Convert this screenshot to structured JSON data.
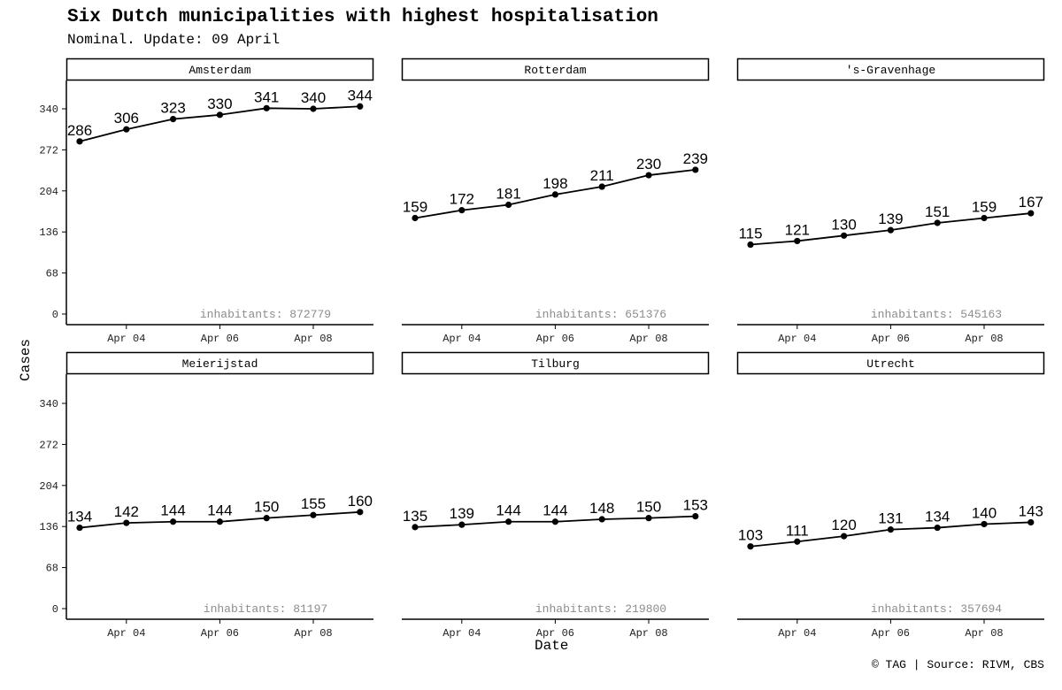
{
  "chart_data": {
    "type": "line",
    "title": "Six Dutch municipalities with highest hospitalisation",
    "subtitle": "Nominal. Update: 09 April",
    "xlabel": "Date",
    "ylabel": "Cases",
    "caption": "© TAG | Source: RIVM, CBS",
    "x": [
      "Apr 03",
      "Apr 04",
      "Apr 05",
      "Apr 06",
      "Apr 07",
      "Apr 08",
      "Apr 09"
    ],
    "x_ticks": [
      "Apr 04",
      "Apr 06",
      "Apr 08"
    ],
    "y_ticks": [
      0,
      68,
      136,
      204,
      272,
      340
    ],
    "ylim": [
      0,
      344
    ],
    "panels": [
      {
        "name": "Amsterdam",
        "values": [
          286,
          306,
          323,
          330,
          341,
          340,
          344
        ],
        "inhabitants": "inhabitants: 872779"
      },
      {
        "name": "Rotterdam",
        "values": [
          159,
          172,
          181,
          198,
          211,
          230,
          239
        ],
        "inhabitants": "inhabitants: 651376"
      },
      {
        "name": "'s-Gravenhage",
        "values": [
          115,
          121,
          130,
          139,
          151,
          159,
          167
        ],
        "inhabitants": "inhabitants: 545163"
      },
      {
        "name": "Meierijstad",
        "values": [
          134,
          142,
          144,
          144,
          150,
          155,
          160
        ],
        "inhabitants": "inhabitants: 81197"
      },
      {
        "name": "Tilburg",
        "values": [
          135,
          139,
          144,
          144,
          148,
          150,
          153
        ],
        "inhabitants": "inhabitants: 219800"
      },
      {
        "name": "Utrecht",
        "values": [
          103,
          111,
          120,
          131,
          134,
          140,
          143
        ],
        "inhabitants": "inhabitants: 357694"
      }
    ]
  }
}
